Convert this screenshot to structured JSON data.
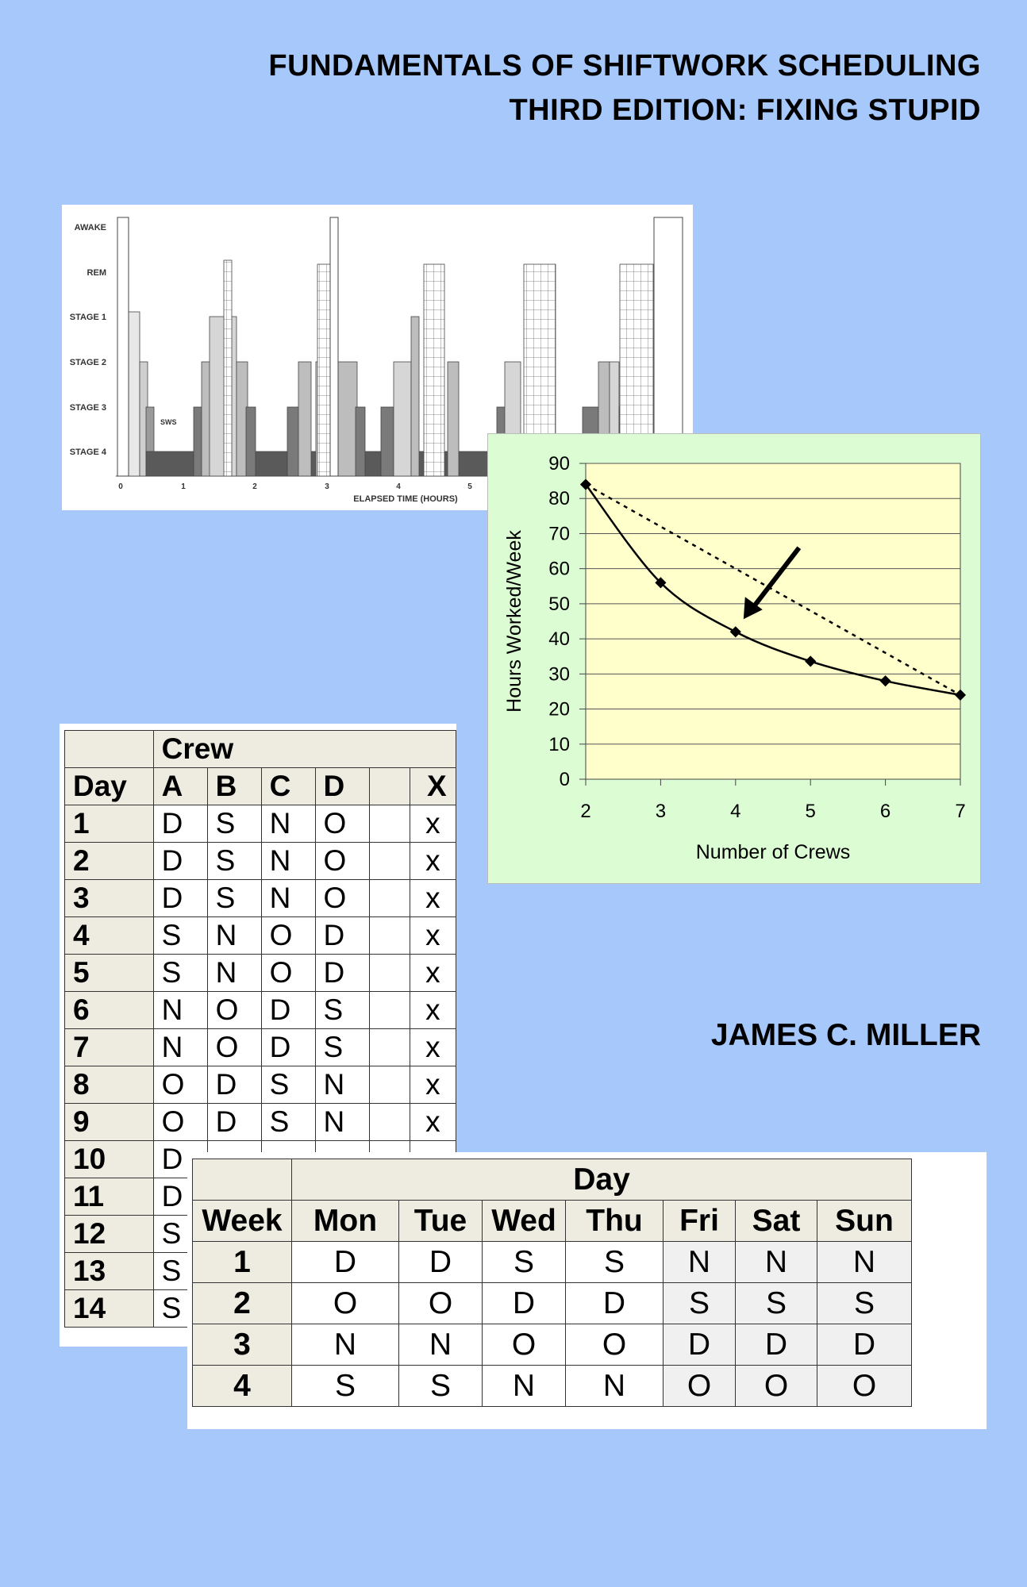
{
  "title_line1": "FUNDAMENTALS OF SHIFTWORK SCHEDULING",
  "title_line2": "THIRD EDITION:  FIXING STUPID",
  "author": "JAMES C. MILLER",
  "sleep_chart": {
    "stages": [
      "AWAKE",
      "REM",
      "STAGE 1",
      "STAGE 2",
      "STAGE 3",
      "STAGE 4"
    ],
    "x_ticks": [
      "0",
      "1",
      "2",
      "3",
      "4",
      "5"
    ],
    "xlabel": "ELAPSED TIME (HOURS)",
    "annotation": "SWS"
  },
  "chart_data": {
    "type": "line",
    "x": [
      2,
      3,
      4,
      5,
      6,
      7
    ],
    "series": [
      {
        "values": [
          84,
          56,
          42,
          33.6,
          28,
          24
        ],
        "style": "solid"
      },
      {
        "values": [
          84,
          24
        ],
        "x": [
          2,
          7
        ],
        "style": "dotted"
      }
    ],
    "xlabel": "Number of Crews",
    "ylabel": "Hours Worked/Week",
    "xlim": [
      2,
      7
    ],
    "ylim": [
      0,
      90
    ],
    "y_ticks": [
      0,
      10,
      20,
      30,
      40,
      50,
      60,
      70,
      80,
      90
    ],
    "grid": true,
    "plot_bg": "#ffffcc",
    "panel_bg": "#dcfcd4",
    "arrow_points_to": {
      "x": 4,
      "y": 42
    }
  },
  "crew_table": {
    "group_header": "Crew",
    "day_header": "Day",
    "crews": [
      "A",
      "B",
      "C",
      "D"
    ],
    "extra_col": "X",
    "rows": [
      {
        "day": "1",
        "cells": [
          "D",
          "S",
          "N",
          "O"
        ],
        "x": "x"
      },
      {
        "day": "2",
        "cells": [
          "D",
          "S",
          "N",
          "O"
        ],
        "x": "x"
      },
      {
        "day": "3",
        "cells": [
          "D",
          "S",
          "N",
          "O"
        ],
        "x": "x"
      },
      {
        "day": "4",
        "cells": [
          "S",
          "N",
          "O",
          "D"
        ],
        "x": "x"
      },
      {
        "day": "5",
        "cells": [
          "S",
          "N",
          "O",
          "D"
        ],
        "x": "x"
      },
      {
        "day": "6",
        "cells": [
          "N",
          "O",
          "D",
          "S"
        ],
        "x": "x"
      },
      {
        "day": "7",
        "cells": [
          "N",
          "O",
          "D",
          "S"
        ],
        "x": "x"
      },
      {
        "day": "8",
        "cells": [
          "O",
          "D",
          "S",
          "N"
        ],
        "x": "x"
      },
      {
        "day": "9",
        "cells": [
          "O",
          "D",
          "S",
          "N"
        ],
        "x": "x"
      },
      {
        "day": "10",
        "cells": [
          "D",
          "",
          "",
          ""
        ],
        "x": ""
      },
      {
        "day": "11",
        "cells": [
          "D",
          "",
          "",
          ""
        ],
        "x": ""
      },
      {
        "day": "12",
        "cells": [
          "S",
          "",
          "",
          ""
        ],
        "x": ""
      },
      {
        "day": "13",
        "cells": [
          "S",
          "",
          "",
          ""
        ],
        "x": ""
      },
      {
        "day": "14",
        "cells": [
          "S",
          "",
          "",
          ""
        ],
        "x": ""
      }
    ]
  },
  "week_table": {
    "group_header": "Day",
    "week_header": "Week",
    "days": [
      "Mon",
      "Tue",
      "Wed",
      "Thu",
      "Fri",
      "Sat",
      "Sun"
    ],
    "rows": [
      {
        "week": "1",
        "cells": [
          "D",
          "D",
          "S",
          "S",
          "N",
          "N",
          "N"
        ]
      },
      {
        "week": "2",
        "cells": [
          "O",
          "O",
          "D",
          "D",
          "S",
          "S",
          "S"
        ]
      },
      {
        "week": "3",
        "cells": [
          "N",
          "N",
          "O",
          "O",
          "D",
          "D",
          "D"
        ]
      },
      {
        "week": "4",
        "cells": [
          "S",
          "S",
          "N",
          "N",
          "O",
          "O",
          "O"
        ]
      }
    ]
  }
}
